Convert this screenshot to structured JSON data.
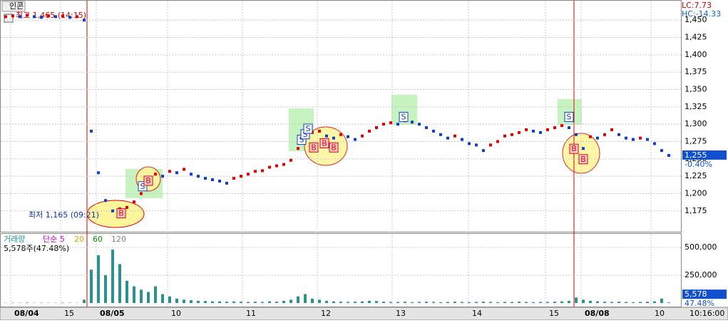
{
  "chart_data": {
    "type": "candle",
    "title": "인콘",
    "high_note": "최고 1,465 (14:15)",
    "low_note": "최저 1,165 (09:21)",
    "lc": "LC:7.73",
    "hc": "HC:-14.33",
    "price": {
      "values": [
        1455,
        1456,
        1455,
        1457,
        1455,
        1454,
        1456,
        1455,
        1456,
        1454,
        1455,
        1450,
        1290,
        1230,
        1190,
        1175,
        1178,
        1180,
        1188,
        1200,
        1215,
        1228,
        1225,
        1232,
        1230,
        1235,
        1228,
        1225,
        1222,
        1220,
        1218,
        1215,
        1222,
        1225,
        1228,
        1232,
        1233,
        1238,
        1240,
        1242,
        1248,
        1265,
        1282,
        1288,
        1290,
        1283,
        1280,
        1285,
        1282,
        1278,
        1283,
        1290,
        1295,
        1300,
        1302,
        1300,
        1305,
        1303,
        1300,
        1295,
        1290,
        1285,
        1280,
        1283,
        1278,
        1272,
        1270,
        1262,
        1270,
        1275,
        1283,
        1285,
        1288,
        1292,
        1290,
        1288,
        1292,
        1295,
        1298,
        1295,
        1285,
        1265,
        1282,
        1280,
        1285,
        1292,
        1285,
        1280,
        1278,
        1280,
        1278,
        1272,
        1262,
        1255
      ],
      "up_color": "#e00000",
      "down_color": "#1040c0"
    },
    "signals": {
      "labels": [
        "B",
        "S",
        "B",
        "S",
        "S",
        "S",
        "B",
        "B",
        "B",
        "S",
        "S",
        "B",
        "B"
      ],
      "values": [
        1171,
        1210,
        1218,
        1277,
        1285,
        1293,
        1266,
        1272,
        1266,
        1310,
        1310,
        1264,
        1249
      ]
    },
    "ylim": [
      1145,
      1479
    ],
    "yticks": [
      {
        "value": 1175,
        "label": "1,175"
      },
      {
        "value": 1200,
        "label": "1,200"
      },
      {
        "value": 1225,
        "label": "1,225"
      },
      {
        "value": 1250,
        "label": "1,250"
      },
      {
        "value": 1275,
        "label": "1,275"
      },
      {
        "value": 1300,
        "label": "1,300"
      },
      {
        "value": 1325,
        "label": "1,325"
      },
      {
        "value": 1350,
        "label": "1,350"
      },
      {
        "value": 1375,
        "label": "1,375"
      },
      {
        "value": 1400,
        "label": "1,400"
      },
      {
        "value": 1425,
        "label": "1,425"
      },
      {
        "value": 1450,
        "label": "1,450"
      }
    ],
    "last": {
      "value": 1255,
      "label": "1,255"
    },
    "change": "-0.40%",
    "volume": {
      "title": "거래량",
      "color": "#2a9090",
      "values": [
        2000,
        3000,
        2500,
        4000,
        2000,
        3000,
        2500,
        2000,
        3500,
        3000,
        2000,
        30000,
        300000,
        430000,
        250000,
        480000,
        350000,
        200000,
        150000,
        120000,
        100000,
        150000,
        80000,
        60000,
        40000,
        30000,
        25000,
        20000,
        18000,
        15000,
        15000,
        12000,
        14000,
        12000,
        10000,
        12000,
        10000,
        15000,
        12000,
        20000,
        30000,
        60000,
        80000,
        40000,
        30000,
        20000,
        15000,
        12000,
        10000,
        12000,
        15000,
        20000,
        18000,
        12000,
        10000,
        10000,
        12000,
        8000,
        10000,
        12000,
        10000,
        8000,
        10000,
        12000,
        10000,
        8000,
        10000,
        12000,
        10000,
        8000,
        10000,
        10000,
        12000,
        10000,
        8000,
        10000,
        10000,
        12000,
        15000,
        20000,
        50000,
        30000,
        20000,
        15000,
        12000,
        10000,
        12000,
        10000,
        8000,
        10000,
        12000,
        15000,
        40000,
        5578
      ]
    },
    "legend": [
      {
        "label": "단순 5",
        "color": "#d000d0"
      },
      {
        "label": "20",
        "color": "#e0a000"
      },
      {
        "label": "60",
        "color": "#009000"
      },
      {
        "label": "120",
        "color": "#808080"
      }
    ],
    "volume_note": "5,578주(47.48%)",
    "y2lim": [
      0,
      628000
    ],
    "y2ticks": [
      {
        "value": 250000,
        "label": "250,000"
      },
      {
        "value": 500000,
        "label": "500,000"
      }
    ],
    "volume_last": {
      "value": 5578,
      "label": "5,578"
    },
    "volume_ratio": "47.48%",
    "x_labels": [
      "08/04",
      "15",
      "08/05",
      "10",
      "11",
      "12",
      "13",
      "14",
      "15",
      "08/08",
      "10"
    ],
    "time": "10:16:00"
  }
}
